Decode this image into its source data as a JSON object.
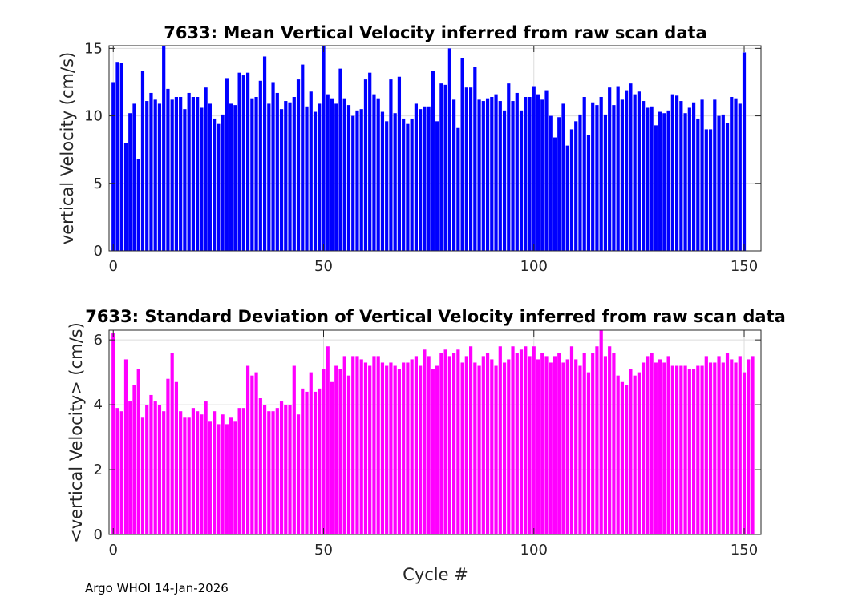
{
  "chart_data": [
    {
      "type": "bar",
      "title": "7633: Mean Vertical Velocity inferred from raw scan data",
      "xlabel": "",
      "ylabel": "vertical Velocity (cm/s)",
      "color": "#0000ff",
      "xlim": [
        -1,
        154
      ],
      "ylim": [
        0,
        15.2
      ],
      "xticks": [
        0,
        50,
        100,
        150
      ],
      "yticks": [
        0,
        5,
        10,
        15
      ],
      "grid": true,
      "x_start": 0,
      "values": [
        12.5,
        14,
        13.9,
        8,
        10.2,
        10.9,
        6.8,
        13.3,
        11.1,
        11.7,
        11.2,
        10.9,
        15.3,
        12,
        11.2,
        11.4,
        11.4,
        10.5,
        11.7,
        11.4,
        11.4,
        10.6,
        12.1,
        10.9,
        9.8,
        9.4,
        10.1,
        12.8,
        10.9,
        10.8,
        13.2,
        13,
        13.2,
        11.3,
        11.4,
        12.6,
        14.4,
        10.9,
        12.5,
        11.7,
        10.5,
        11.1,
        11,
        11.4,
        12.7,
        13.8,
        10.7,
        11.8,
        10.3,
        10.9,
        15.5,
        11.6,
        11.3,
        10.9,
        13.5,
        11.3,
        10.8,
        10,
        10.4,
        10.5,
        12.7,
        13.2,
        11.6,
        11.3,
        10.3,
        9.6,
        12.7,
        10.2,
        12.9,
        9.8,
        9.4,
        9.8,
        10.9,
        10.5,
        10.7,
        10.7,
        13.3,
        9.6,
        12.4,
        12.3,
        15,
        11.2,
        9.1,
        14.3,
        12.1,
        12.1,
        13.6,
        11.2,
        11.1,
        11.3,
        11.4,
        11.6,
        11.1,
        10.4,
        12.4,
        11.1,
        11.7,
        10.4,
        11.4,
        11.4,
        12.2,
        11.6,
        11.2,
        11.9,
        10,
        8.4,
        9.9,
        10.9,
        7.8,
        9,
        9.6,
        10.1,
        11.4,
        8.6,
        11,
        10.8,
        11.4,
        10.1,
        12.1,
        10.8,
        12.2,
        11.2,
        11.9,
        12.4,
        11.6,
        11.8,
        11.1,
        10.6,
        10.7,
        9.3,
        10.3,
        10.2,
        10.4,
        11.6,
        11.5,
        11.1,
        10.2,
        10.6,
        11,
        9.8,
        11.2,
        9,
        9,
        11.2,
        10,
        10.1,
        9.5,
        11.4,
        11.3,
        10.9,
        14.7
      ]
    },
    {
      "type": "bar",
      "title": "7633: Standard Deviation of Vertical Velocity inferred from raw scan data",
      "xlabel": "Cycle #",
      "ylabel": "<vertical Velocity> (cm/s)",
      "color": "#ff00ff",
      "xlim": [
        -1,
        154
      ],
      "ylim": [
        0,
        6.3
      ],
      "xticks": [
        0,
        50,
        100,
        150
      ],
      "yticks": [
        0,
        2,
        4,
        6
      ],
      "grid": true,
      "x_start": 0,
      "values": [
        6.2,
        3.9,
        3.8,
        5.4,
        4.1,
        4.6,
        5.1,
        3.6,
        4,
        4.3,
        4.1,
        4,
        3.8,
        4.8,
        5.6,
        4.7,
        3.8,
        3.6,
        3.6,
        3.9,
        3.8,
        3.7,
        4.1,
        3.5,
        3.8,
        3.4,
        3.7,
        3.4,
        3.6,
        3.5,
        3.9,
        3.9,
        5.2,
        4.9,
        5,
        4.2,
        4,
        3.8,
        3.8,
        3.9,
        4.1,
        4,
        4,
        5.2,
        3.7,
        4.5,
        4.4,
        5,
        4.4,
        4.5,
        5.1,
        5.8,
        4.7,
        5.2,
        5.1,
        5.5,
        4.9,
        5.5,
        5.5,
        5.4,
        5.3,
        5.2,
        5.5,
        5.5,
        5.3,
        5.2,
        5.3,
        5.2,
        5.1,
        5.3,
        5.3,
        5.4,
        5.5,
        5.2,
        5.7,
        5.5,
        5.1,
        5.2,
        5.6,
        5.7,
        5.5,
        5.6,
        5.7,
        5.3,
        5.5,
        5.8,
        5.3,
        5.2,
        5.5,
        5.6,
        5.4,
        5.2,
        5.8,
        5.3,
        5.4,
        5.8,
        5.6,
        5.7,
        5.8,
        5.5,
        5.8,
        5.4,
        5.6,
        5.5,
        5.3,
        5.5,
        5.6,
        5.3,
        5.4,
        5.8,
        5.4,
        5.2,
        5.6,
        5,
        5.6,
        5.8,
        6.4,
        5.5,
        5.8,
        5.6,
        4.9,
        4.7,
        4.6,
        5.1,
        4.9,
        5,
        5.3,
        5.5,
        5.6,
        5.3,
        5.4,
        5.3,
        5.5,
        5.2,
        5.2,
        5.2,
        5.2,
        5.1,
        5.1,
        5.2,
        5.2,
        5.5,
        5.3,
        5.3,
        5.5,
        5.3,
        5.6,
        5.4,
        5.3,
        5.5,
        5,
        5.4,
        5.5
      ]
    }
  ],
  "footer": "Argo WHOI 14-Jan-2026"
}
